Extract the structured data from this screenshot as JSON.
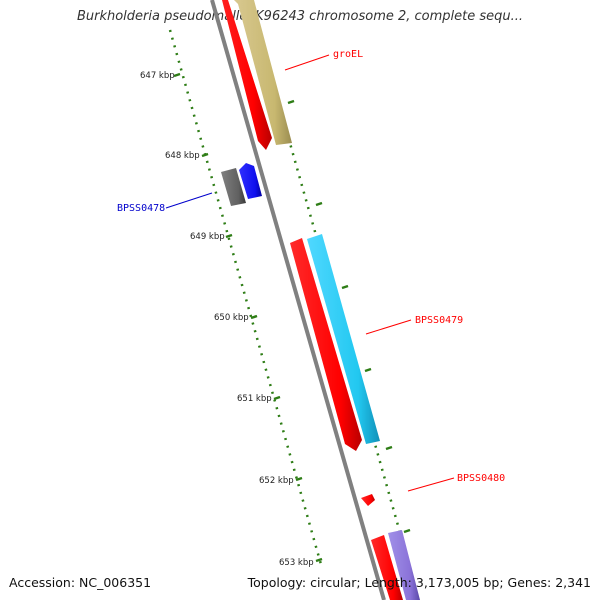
{
  "header": {
    "title": "Burkholderia pseudomallei K96243 chromosome 2, complete sequ..."
  },
  "footer": {
    "accession": "Accession: NC_006351",
    "summary": "Topology: circular; Length: 3,173,005 bp; Genes: 2,341"
  },
  "ruler": {
    "labels": [
      "647 kbp",
      "648 kbp",
      "649 kbp",
      "650 kbp",
      "651 kbp",
      "652 kbp",
      "653 kbp"
    ],
    "tick_color": "#2e7d16",
    "backbone_color": "#808080"
  },
  "features": [
    {
      "name": "groEL",
      "label": "groEL",
      "color": "#ff0000"
    },
    {
      "name": "BPSS0478",
      "label": "BPSS0478",
      "color": "#0000cc"
    },
    {
      "name": "BPSS0479",
      "label": "BPSS0479",
      "color": "#ff0000"
    },
    {
      "name": "BPSS0480",
      "label": "BPSS0480",
      "color": "#ff0000"
    }
  ],
  "colors": {
    "cds_red": "#ff0000",
    "cds_tan": "#c8b870",
    "cds_cyan": "#22c8f0",
    "cds_blue": "#1010ee",
    "cds_gray": "#606060",
    "cds_purple": "#8a72d8"
  }
}
